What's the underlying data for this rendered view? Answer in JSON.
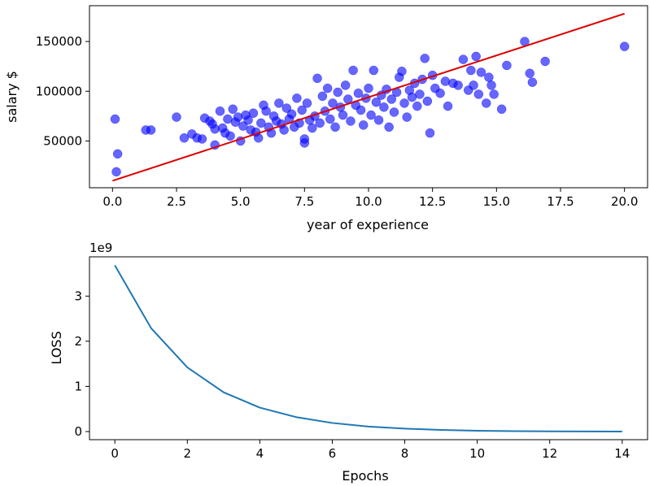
{
  "chart_data": [
    {
      "type": "scatter",
      "xlabel": "year of experience",
      "ylabel": "salary $",
      "xlim": [
        -0.9,
        20.9
      ],
      "ylim": [
        3000,
        186000
      ],
      "x_ticks": [
        0.0,
        2.5,
        5.0,
        7.5,
        10.0,
        12.5,
        15.0,
        17.5,
        20.0
      ],
      "x_tick_labels": [
        "0.0",
        "2.5",
        "5.0",
        "7.5",
        "10.0",
        "12.5",
        "15.0",
        "17.5",
        "20.0"
      ],
      "y_ticks": [
        50000,
        100000,
        150000
      ],
      "y_tick_labels": [
        "50000",
        "100000",
        "150000"
      ],
      "grid": false,
      "series": [
        {
          "kind": "scatter",
          "color": "#0000ff",
          "alpha": 0.6,
          "points": [
            [
              0.1,
              72000
            ],
            [
              0.15,
              19000
            ],
            [
              0.2,
              37000
            ],
            [
              1.3,
              61000
            ],
            [
              1.5,
              61000
            ],
            [
              2.5,
              74000
            ],
            [
              2.8,
              53000
            ],
            [
              3.1,
              57000
            ],
            [
              3.3,
              53000
            ],
            [
              3.5,
              52000
            ],
            [
              3.6,
              73000
            ],
            [
              3.8,
              70000
            ],
            [
              3.9,
              67000
            ],
            [
              4.0,
              62000
            ],
            [
              4.0,
              46000
            ],
            [
              4.2,
              80000
            ],
            [
              4.3,
              63000
            ],
            [
              4.4,
              58000
            ],
            [
              4.5,
              72000
            ],
            [
              4.6,
              55000
            ],
            [
              4.7,
              82000
            ],
            [
              4.8,
              69000
            ],
            [
              4.9,
              74000
            ],
            [
              5.0,
              50000
            ],
            [
              5.1,
              65000
            ],
            [
              5.2,
              76000
            ],
            [
              5.3,
              71000
            ],
            [
              5.4,
              61000
            ],
            [
              5.5,
              78000
            ],
            [
              5.6,
              59000
            ],
            [
              5.7,
              53000
            ],
            [
              5.8,
              68000
            ],
            [
              5.9,
              86000
            ],
            [
              6.0,
              80000
            ],
            [
              6.1,
              64000
            ],
            [
              6.2,
              58000
            ],
            [
              6.3,
              75000
            ],
            [
              6.4,
              70000
            ],
            [
              6.5,
              88000
            ],
            [
              6.6,
              67000
            ],
            [
              6.7,
              61000
            ],
            [
              6.8,
              83000
            ],
            [
              6.9,
              72000
            ],
            [
              7.0,
              77000
            ],
            [
              7.1,
              64000
            ],
            [
              7.2,
              93000
            ],
            [
              7.3,
              68000
            ],
            [
              7.4,
              81000
            ],
            [
              7.5,
              52000
            ],
            [
              7.5,
              48000
            ],
            [
              7.6,
              88000
            ],
            [
              7.7,
              71000
            ],
            [
              7.8,
              63000
            ],
            [
              7.9,
              75000
            ],
            [
              8.0,
              113000
            ],
            [
              8.1,
              68000
            ],
            [
              8.2,
              95000
            ],
            [
              8.3,
              80000
            ],
            [
              8.4,
              103000
            ],
            [
              8.5,
              72000
            ],
            [
              8.6,
              88000
            ],
            [
              8.7,
              64000
            ],
            [
              8.8,
              99000
            ],
            [
              8.9,
              84000
            ],
            [
              9.0,
              76000
            ],
            [
              9.1,
              106000
            ],
            [
              9.2,
              92000
            ],
            [
              9.3,
              70000
            ],
            [
              9.4,
              121000
            ],
            [
              9.5,
              86000
            ],
            [
              9.6,
              98000
            ],
            [
              9.7,
              81000
            ],
            [
              9.8,
              66000
            ],
            [
              9.9,
              93000
            ],
            [
              10.0,
              103000
            ],
            [
              10.1,
              76000
            ],
            [
              10.2,
              121000
            ],
            [
              10.3,
              89000
            ],
            [
              10.4,
              71000
            ],
            [
              10.5,
              96000
            ],
            [
              10.6,
              84000
            ],
            [
              10.7,
              102000
            ],
            [
              10.8,
              64000
            ],
            [
              10.9,
              92000
            ],
            [
              11.0,
              79000
            ],
            [
              11.1,
              99000
            ],
            [
              11.2,
              114000
            ],
            [
              11.3,
              120000
            ],
            [
              11.4,
              88000
            ],
            [
              11.5,
              74000
            ],
            [
              11.6,
              101000
            ],
            [
              11.7,
              94000
            ],
            [
              11.8,
              108000
            ],
            [
              11.9,
              85000
            ],
            [
              12.0,
              97000
            ],
            [
              12.1,
              112000
            ],
            [
              12.2,
              133000
            ],
            [
              12.3,
              90000
            ],
            [
              12.4,
              58000
            ],
            [
              12.5,
              116000
            ],
            [
              12.6,
              103000
            ],
            [
              12.8,
              98000
            ],
            [
              13.0,
              110000
            ],
            [
              13.1,
              85000
            ],
            [
              13.3,
              108000
            ],
            [
              13.5,
              106000
            ],
            [
              13.7,
              132000
            ],
            [
              13.9,
              101000
            ],
            [
              14.0,
              121000
            ],
            [
              14.1,
              106000
            ],
            [
              14.2,
              135000
            ],
            [
              14.3,
              97000
            ],
            [
              14.4,
              119000
            ],
            [
              14.6,
              88000
            ],
            [
              14.7,
              114000
            ],
            [
              14.8,
              106000
            ],
            [
              14.9,
              97000
            ],
            [
              15.2,
              82000
            ],
            [
              15.4,
              126000
            ],
            [
              16.1,
              150000
            ],
            [
              16.3,
              118000
            ],
            [
              16.4,
              109000
            ],
            [
              16.9,
              130000
            ],
            [
              20.0,
              145000
            ]
          ]
        },
        {
          "kind": "line",
          "color": "#dd0000",
          "points": [
            [
              0.0,
              10000
            ],
            [
              20.0,
              178000
            ]
          ]
        }
      ]
    },
    {
      "type": "line",
      "xlabel": "Epochs",
      "ylabel": "LOSS",
      "y_offset_label": "1e9",
      "xlim": [
        -0.7,
        14.7
      ],
      "ylim": [
        -0.18,
        3.87
      ],
      "x_ticks": [
        0,
        2,
        4,
        6,
        8,
        10,
        12,
        14
      ],
      "x_tick_labels": [
        "0",
        "2",
        "4",
        "6",
        "8",
        "10",
        "12",
        "14"
      ],
      "y_ticks": [
        0,
        1,
        2,
        3
      ],
      "y_tick_labels": [
        "0",
        "1",
        "2",
        "3"
      ],
      "grid": false,
      "series": [
        {
          "kind": "line",
          "color": "#1f77b4",
          "x": [
            0,
            1,
            2,
            3,
            4,
            5,
            6,
            7,
            8,
            9,
            10,
            11,
            12,
            13,
            14
          ],
          "values": [
            3.68,
            2.29,
            1.42,
            0.87,
            0.53,
            0.32,
            0.19,
            0.11,
            0.065,
            0.035,
            0.018,
            0.009,
            0.004,
            0.002,
            0.001
          ]
        }
      ]
    }
  ]
}
